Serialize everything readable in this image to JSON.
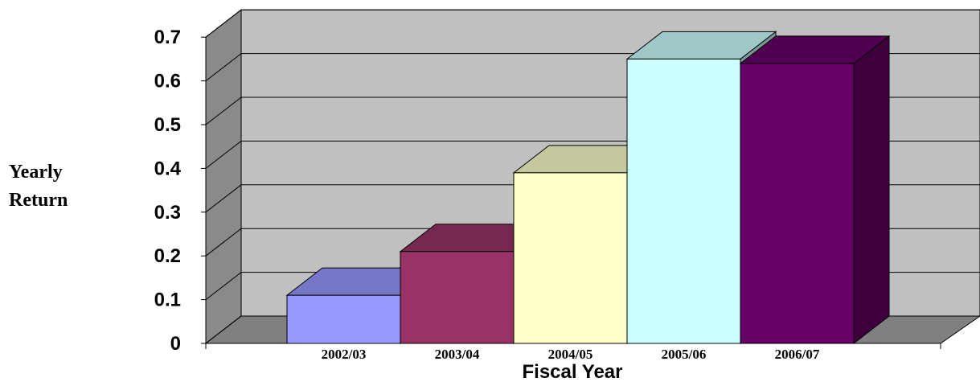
{
  "chart_data": {
    "type": "bar",
    "style": "3d-columns",
    "categories": [
      "2002/03",
      "2003/04",
      "2004/05",
      "2005/06",
      "2006/07"
    ],
    "values": [
      0.11,
      0.21,
      0.39,
      0.65,
      0.64
    ],
    "colors": [
      "#9999ff",
      "#993366",
      "#ffffcc",
      "#ccffff",
      "#660066"
    ],
    "ylabel_lines": [
      "Yearly",
      "Return"
    ],
    "xlabel": "Fiscal Year",
    "ylim": [
      0,
      0.7
    ],
    "yticks": [
      "0",
      "0.1",
      "0.2",
      "0.3",
      "0.4",
      "0.5",
      "0.6",
      "0.7"
    ],
    "grid": true,
    "wall_color": "#c0c0c0",
    "floor_color": "#808080"
  }
}
